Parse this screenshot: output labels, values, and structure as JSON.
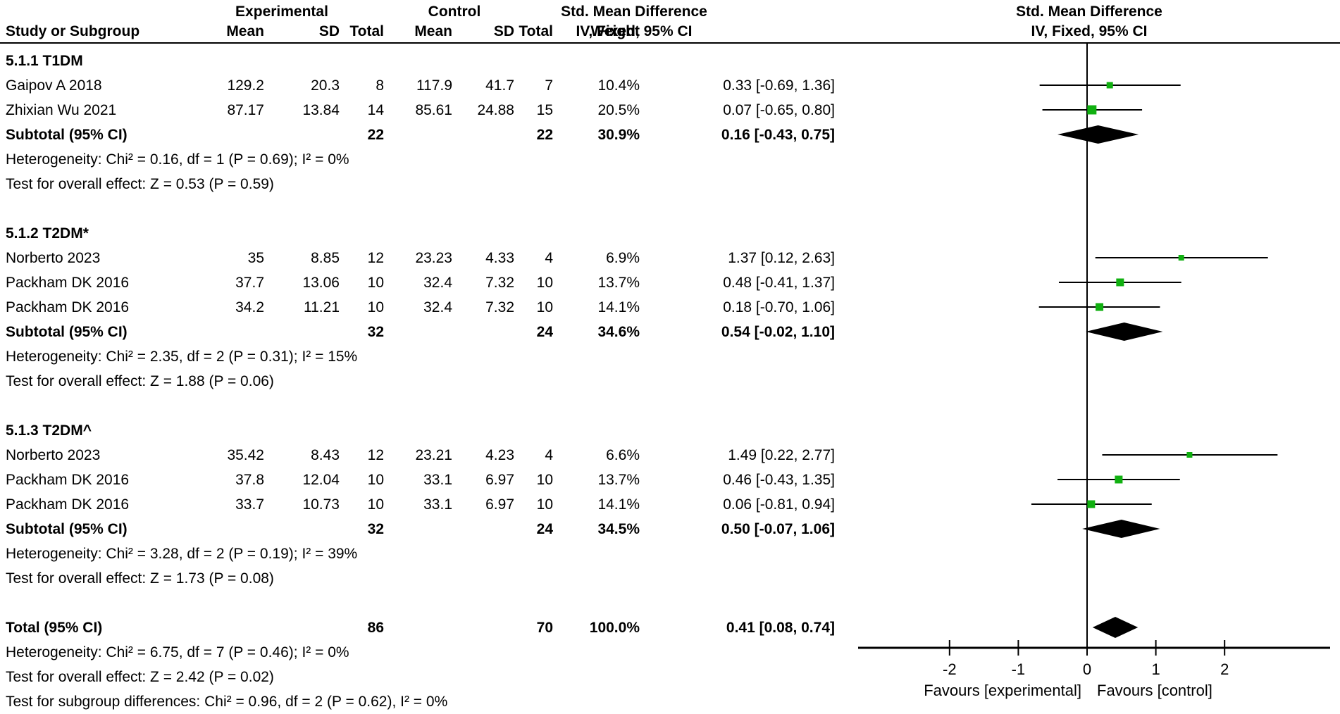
{
  "header": {
    "exp_group": "Experimental",
    "ctrl_group": "Control",
    "smd_left": "Std. Mean Difference",
    "smd_right": "Std. Mean Difference",
    "study_col": "Study or Subgroup",
    "mean_col": "Mean",
    "sd_col": "SD",
    "total_col": "Total",
    "weight_col": "Weight",
    "ci_col_left": "IV, Fixed, 95% CI",
    "ci_col_right": "IV, Fixed, 95% CI"
  },
  "rows": [
    {
      "type": "group",
      "label": "5.1.1 T1DM"
    },
    {
      "type": "study",
      "study": "Gaipov A 2018",
      "mean1": "129.2",
      "sd1": "20.3",
      "total1": "8",
      "mean2": "117.9",
      "sd2": "41.7",
      "total2": "7",
      "weight": "10.4%",
      "ci": "0.33 [-0.69, 1.36]",
      "est": 0.33,
      "lo": -0.69,
      "hi": 1.36,
      "weight_val": 10.4
    },
    {
      "type": "study",
      "study": "Zhixian Wu 2021",
      "mean1": "87.17",
      "sd1": "13.84",
      "total1": "14",
      "mean2": "85.61",
      "sd2": "24.88",
      "total2": "15",
      "weight": "20.5%",
      "ci": "0.07 [-0.65, 0.80]",
      "est": 0.07,
      "lo": -0.65,
      "hi": 0.8,
      "weight_val": 20.5
    },
    {
      "type": "subtotal",
      "label": "Subtotal (95% CI)",
      "total1": "22",
      "total2": "22",
      "weight": "30.9%",
      "ci": "0.16 [-0.43, 0.75]",
      "est": 0.16,
      "lo": -0.43,
      "hi": 0.75
    },
    {
      "type": "note",
      "label": "Heterogeneity: Chi² = 0.16, df = 1 (P = 0.69); I² = 0%"
    },
    {
      "type": "note",
      "label": "Test for overall effect: Z = 0.53 (P = 0.59)"
    },
    {
      "type": "blank"
    },
    {
      "type": "group",
      "label": "5.1.2 T2DM*"
    },
    {
      "type": "study",
      "study": "Norberto 2023",
      "mean1": "35",
      "sd1": "8.85",
      "total1": "12",
      "mean2": "23.23",
      "sd2": "4.33",
      "total2": "4",
      "weight": "6.9%",
      "ci": "1.37 [0.12, 2.63]",
      "est": 1.37,
      "lo": 0.12,
      "hi": 2.63,
      "weight_val": 6.9
    },
    {
      "type": "study",
      "study": "Packham DK 2016",
      "mean1": "37.7",
      "sd1": "13.06",
      "total1": "10",
      "mean2": "32.4",
      "sd2": "7.32",
      "total2": "10",
      "weight": "13.7%",
      "ci": "0.48 [-0.41, 1.37]",
      "est": 0.48,
      "lo": -0.41,
      "hi": 1.37,
      "weight_val": 13.7
    },
    {
      "type": "study",
      "study": "Packham DK 2016",
      "mean1": "34.2",
      "sd1": "11.21",
      "total1": "10",
      "mean2": "32.4",
      "sd2": "7.32",
      "total2": "10",
      "weight": "14.1%",
      "ci": "0.18 [-0.70, 1.06]",
      "est": 0.18,
      "lo": -0.7,
      "hi": 1.06,
      "weight_val": 14.1
    },
    {
      "type": "subtotal",
      "label": "Subtotal (95% CI)",
      "total1": "32",
      "total2": "24",
      "weight": "34.6%",
      "ci": "0.54 [-0.02, 1.10]",
      "est": 0.54,
      "lo": -0.02,
      "hi": 1.1
    },
    {
      "type": "note",
      "label": "Heterogeneity: Chi² = 2.35, df = 2 (P = 0.31); I² = 15%"
    },
    {
      "type": "note",
      "label": "Test for overall effect: Z = 1.88 (P = 0.06)"
    },
    {
      "type": "blank"
    },
    {
      "type": "group",
      "label": "5.1.3 T2DM^"
    },
    {
      "type": "study",
      "study": "Norberto 2023",
      "mean1": "35.42",
      "sd1": "8.43",
      "total1": "12",
      "mean2": "23.21",
      "sd2": "4.23",
      "total2": "4",
      "weight": "6.6%",
      "ci": "1.49 [0.22, 2.77]",
      "est": 1.49,
      "lo": 0.22,
      "hi": 2.77,
      "weight_val": 6.6
    },
    {
      "type": "study",
      "study": "Packham DK 2016",
      "mean1": "37.8",
      "sd1": "12.04",
      "total1": "10",
      "mean2": "33.1",
      "sd2": "6.97",
      "total2": "10",
      "weight": "13.7%",
      "ci": "0.46 [-0.43, 1.35]",
      "est": 0.46,
      "lo": -0.43,
      "hi": 1.35,
      "weight_val": 13.7
    },
    {
      "type": "study",
      "study": "Packham DK 2016",
      "mean1": "33.7",
      "sd1": "10.73",
      "total1": "10",
      "mean2": "33.1",
      "sd2": "6.97",
      "total2": "10",
      "weight": "14.1%",
      "ci": "0.06 [-0.81, 0.94]",
      "est": 0.06,
      "lo": -0.81,
      "hi": 0.94,
      "weight_val": 14.1
    },
    {
      "type": "subtotal",
      "label": "Subtotal (95% CI)",
      "total1": "32",
      "total2": "24",
      "weight": "34.5%",
      "ci": "0.50 [-0.07, 1.06]",
      "est": 0.5,
      "lo": -0.07,
      "hi": 1.06
    },
    {
      "type": "note",
      "label": "Heterogeneity: Chi² = 3.28, df = 2 (P = 0.19); I² = 39%"
    },
    {
      "type": "note",
      "label": "Test for overall effect: Z = 1.73 (P = 0.08)"
    },
    {
      "type": "blank"
    },
    {
      "type": "total",
      "label": "Total (95% CI)",
      "total1": "86",
      "total2": "70",
      "weight": "100.0%",
      "ci": "0.41 [0.08, 0.74]",
      "est": 0.41,
      "lo": 0.08,
      "hi": 0.74
    },
    {
      "type": "note",
      "label": "Heterogeneity: Chi² = 6.75, df = 7 (P = 0.46); I² = 0%"
    },
    {
      "type": "note",
      "label": "Test for overall effect: Z = 2.42 (P = 0.02)"
    },
    {
      "type": "note",
      "label": "Test for subgroup differences: Chi² = 0.96, df = 2 (P = 0.62), I² = 0%"
    }
  ],
  "axis": {
    "ticks": [
      "-2",
      "-1",
      "0",
      "1",
      "2"
    ],
    "tick_values": [
      -2,
      -1,
      0,
      1,
      2
    ],
    "favours_left": "Favours [experimental]",
    "favours_right": "Favours [control]",
    "marker_color": "#10b010",
    "line_color": "#000000"
  },
  "chart_data": {
    "type": "scatter",
    "title": "Std. Mean Difference — IV, Fixed, 95% CI (forest plot)",
    "xlim": [
      -3.4,
      3.5
    ],
    "xticks": [
      -2,
      -1,
      0,
      1,
      2
    ],
    "xlabel_left": "Favours [experimental]",
    "xlabel_right": "Favours [control]",
    "subgroups": [
      {
        "name": "5.1.1 T1DM",
        "studies": [
          {
            "study": "Gaipov A 2018",
            "smd": 0.33,
            "ci": [
              -0.69,
              1.36
            ],
            "weight_pct": 10.4
          },
          {
            "study": "Zhixian Wu 2021",
            "smd": 0.07,
            "ci": [
              -0.65,
              0.8
            ],
            "weight_pct": 20.5
          }
        ],
        "subtotal": {
          "smd": 0.16,
          "ci": [
            -0.43,
            0.75
          ],
          "weight_pct": 30.9,
          "exp_total": 22,
          "ctrl_total": 22
        },
        "heterogeneity": "Chi² = 0.16, df = 1 (P = 0.69); I² = 0%",
        "overall_effect": "Z = 0.53 (P = 0.59)"
      },
      {
        "name": "5.1.2 T2DM*",
        "studies": [
          {
            "study": "Norberto 2023",
            "smd": 1.37,
            "ci": [
              0.12,
              2.63
            ],
            "weight_pct": 6.9
          },
          {
            "study": "Packham DK 2016",
            "smd": 0.48,
            "ci": [
              -0.41,
              1.37
            ],
            "weight_pct": 13.7
          },
          {
            "study": "Packham DK 2016",
            "smd": 0.18,
            "ci": [
              -0.7,
              1.06
            ],
            "weight_pct": 14.1
          }
        ],
        "subtotal": {
          "smd": 0.54,
          "ci": [
            -0.02,
            1.1
          ],
          "weight_pct": 34.6,
          "exp_total": 32,
          "ctrl_total": 24
        },
        "heterogeneity": "Chi² = 2.35, df = 2 (P = 0.31); I² = 15%",
        "overall_effect": "Z = 1.88 (P = 0.06)"
      },
      {
        "name": "5.1.3 T2DM^",
        "studies": [
          {
            "study": "Norberto 2023",
            "smd": 1.49,
            "ci": [
              0.22,
              2.77
            ],
            "weight_pct": 6.6
          },
          {
            "study": "Packham DK 2016",
            "smd": 0.46,
            "ci": [
              -0.43,
              1.35
            ],
            "weight_pct": 13.7
          },
          {
            "study": "Packham DK 2016",
            "smd": 0.06,
            "ci": [
              -0.81,
              0.94
            ],
            "weight_pct": 14.1
          }
        ],
        "subtotal": {
          "smd": 0.5,
          "ci": [
            -0.07,
            1.06
          ],
          "weight_pct": 34.5,
          "exp_total": 32,
          "ctrl_total": 24
        },
        "heterogeneity": "Chi² = 3.28, df = 2 (P = 0.19); I² = 39%",
        "overall_effect": "Z = 1.73 (P = 0.08)"
      }
    ],
    "total": {
      "smd": 0.41,
      "ci": [
        0.08,
        0.74
      ],
      "weight_pct": 100.0,
      "exp_total": 86,
      "ctrl_total": 70
    },
    "total_heterogeneity": "Chi² = 6.75, df = 7 (P = 0.46); I² = 0%",
    "total_overall_effect": "Z = 2.42 (P = 0.02)",
    "subgroup_differences": "Chi² = 0.96, df = 2 (P = 0.62), I² = 0%"
  }
}
